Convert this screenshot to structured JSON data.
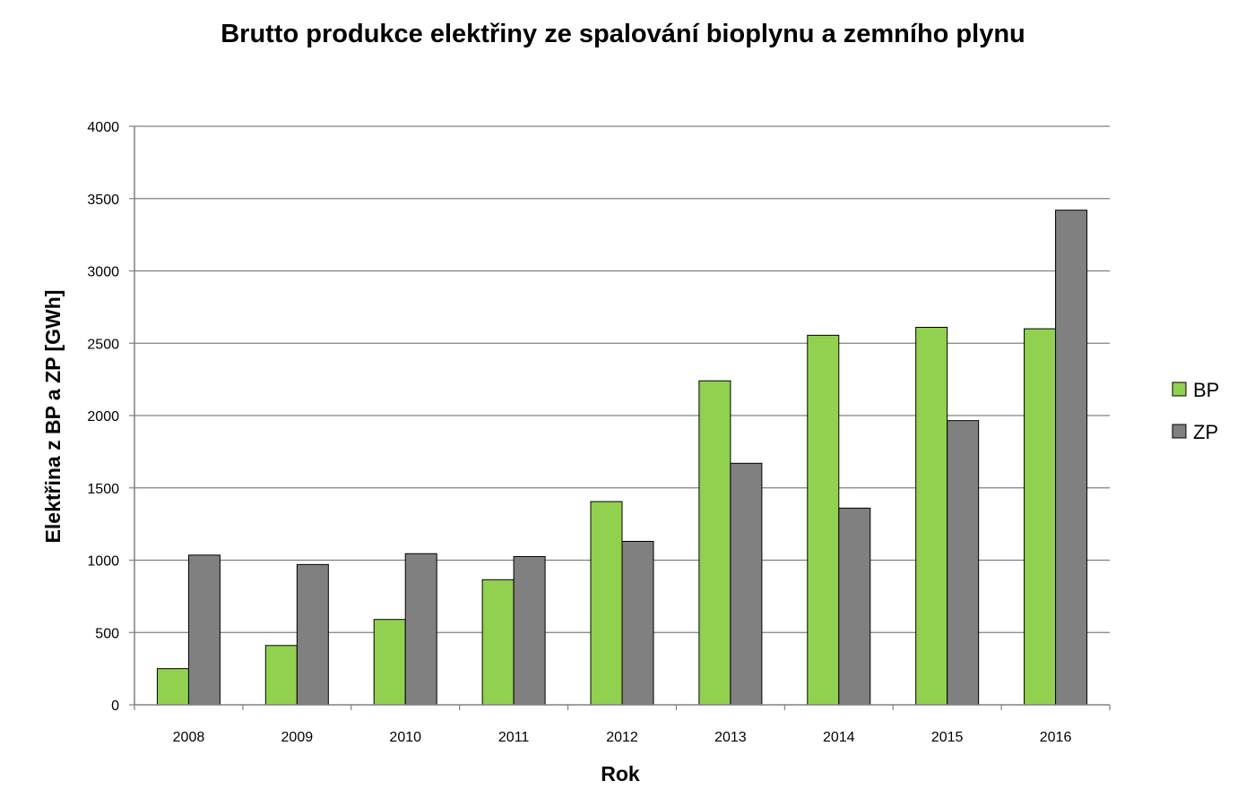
{
  "chart_data": {
    "type": "bar",
    "title": "Brutto produkce elektřiny ze spalování bioplynu a zemního plynu",
    "xlabel": "Rok",
    "ylabel": "Elektřina z BP a ZP [GWh]",
    "categories": [
      "2008",
      "2009",
      "2010",
      "2011",
      "2012",
      "2013",
      "2014",
      "2015",
      "2016"
    ],
    "ylim": [
      0,
      4000
    ],
    "yticks": [
      0,
      500,
      1000,
      1500,
      2000,
      2500,
      3000,
      3500,
      4000
    ],
    "grid": true,
    "legend_position": "right",
    "series": [
      {
        "name": "BP",
        "color": "#92d050",
        "values": [
          250,
          410,
          590,
          865,
          1405,
          2240,
          2555,
          2610,
          2600
        ]
      },
      {
        "name": "ZP",
        "color": "#808080",
        "values": [
          1035,
          970,
          1045,
          1025,
          1130,
          1670,
          1360,
          1965,
          3420
        ]
      }
    ]
  }
}
